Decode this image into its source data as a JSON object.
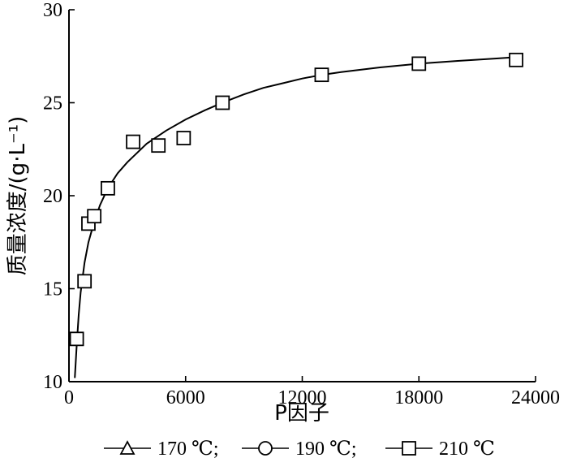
{
  "chart_data": {
    "type": "scatter",
    "xlabel": "P因子",
    "ylabel": "质量浓度/(g·L⁻¹)",
    "xlim": [
      0,
      24000
    ],
    "ylim": [
      10,
      30
    ],
    "xticks": [
      0,
      6000,
      12000,
      18000,
      24000
    ],
    "yticks": [
      10,
      15,
      20,
      25,
      30
    ],
    "xtick_labels": [
      "0",
      "6000",
      "12000",
      "18000",
      "24000"
    ],
    "ytick_labels": [
      "10",
      "15",
      "20",
      "25",
      "30"
    ],
    "grid": false,
    "legend_position": "bottom",
    "series": [
      {
        "name": "170 ℃",
        "marker": "triangle",
        "x": [],
        "y": []
      },
      {
        "name": "190 ℃",
        "marker": "circle",
        "x": [],
        "y": []
      },
      {
        "name": "210 ℃",
        "marker": "square",
        "x": [
          400,
          800,
          1000,
          1300,
          2000,
          3300,
          4600,
          5900,
          7900,
          13000,
          18000,
          23000
        ],
        "y": [
          12.3,
          15.4,
          18.5,
          18.9,
          20.4,
          22.9,
          22.7,
          23.1,
          25.0,
          26.5,
          27.1,
          27.3
        ]
      }
    ],
    "fit_curve": {
      "x": [
        300,
        400,
        500,
        600,
        800,
        1000,
        1300,
        1600,
        2000,
        2500,
        3000,
        3500,
        4000,
        5000,
        6000,
        7000,
        8000,
        9000,
        10000,
        11000,
        12000,
        13000,
        14000,
        16000,
        18000,
        20000,
        22000,
        23000
      ],
      "y": [
        10.2,
        12.0,
        13.6,
        14.8,
        16.4,
        17.5,
        18.6,
        19.5,
        20.4,
        21.2,
        21.8,
        22.3,
        22.8,
        23.5,
        24.1,
        24.6,
        25.05,
        25.45,
        25.8,
        26.05,
        26.3,
        26.5,
        26.65,
        26.9,
        27.1,
        27.25,
        27.38,
        27.45
      ]
    },
    "legend_separator": ";"
  }
}
